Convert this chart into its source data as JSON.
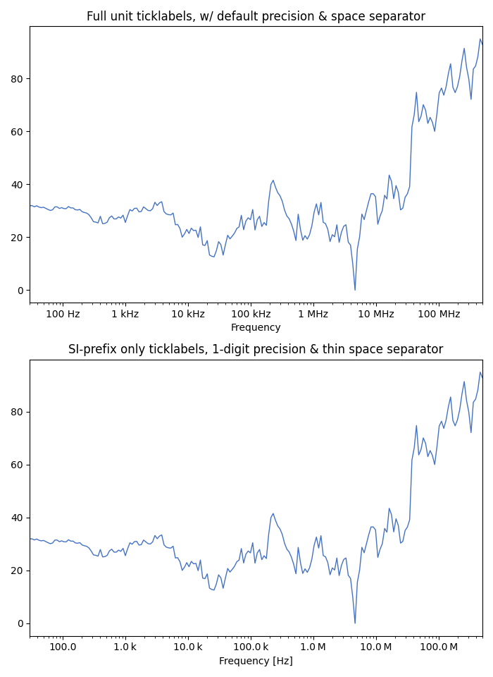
{
  "title1": "Full unit ticklabels, w/ default precision & space separator",
  "title2": "SI-prefix only ticklabels, 1-digit precision & thin space separator",
  "xlabel1": "Frequency",
  "xlabel2": "Frequency [Hz]",
  "line_color": "#4472C4",
  "xmin": 30,
  "xmax": 500000000.0,
  "seed": 2,
  "n_points": 200,
  "ymax": 95,
  "figsize": [
    7.0,
    9.6
  ],
  "dpi": 100
}
